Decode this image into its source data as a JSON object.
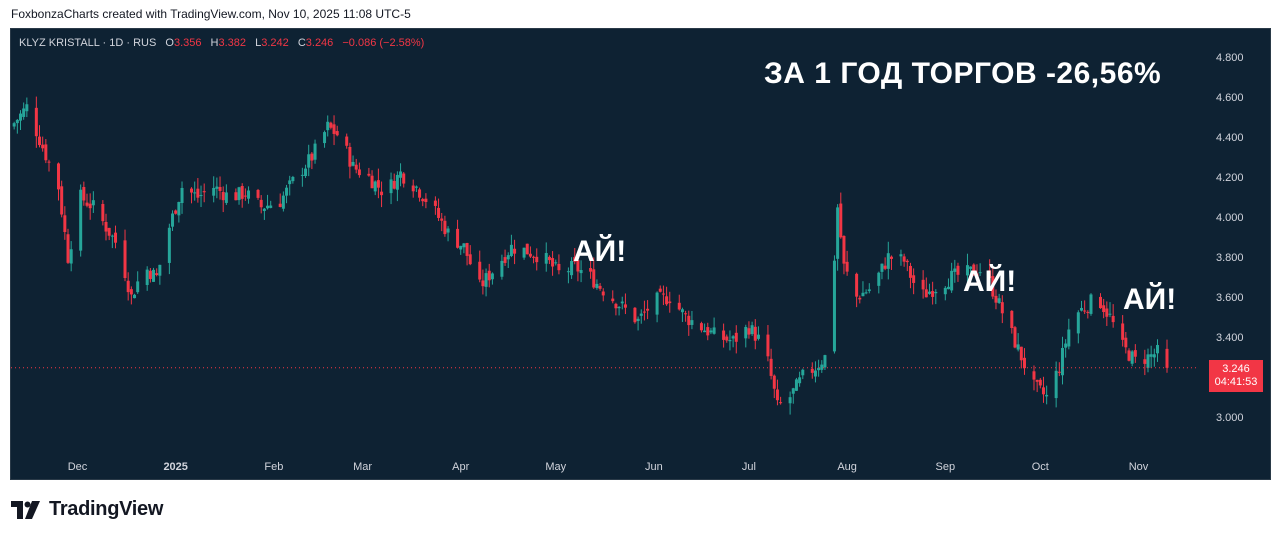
{
  "caption": "FoxbonzaCharts created with TradingView.com, Nov 10, 2025 11:08 UTC-5",
  "legend": {
    "symbol": "KLYZ KRISTALL · 1D · RUS",
    "open_label": "O",
    "open": "3.356",
    "high_label": "H",
    "high": "3.382",
    "low_label": "L",
    "low": "3.242",
    "close_label": "C",
    "close": "3.246",
    "change": "−0.086 (−2.58%)"
  },
  "headline": "ЗА 1 ГОД ТОРГОВ -26,56%",
  "notes": [
    "АЙ!",
    "АЙ!",
    "АЙ!"
  ],
  "price_tag": {
    "price": "3.246",
    "countdown": "04:41:53"
  },
  "footer": {
    "brand": "TradingView"
  },
  "colors": {
    "background": "#0e2233",
    "up": "#26a69a",
    "down": "#f23645",
    "axis_text": "#d1d4dc"
  },
  "chart_data": {
    "type": "candlestick",
    "title": "",
    "ylim": [
      2.85,
      4.9
    ],
    "y_ticks": [
      "4.800",
      "4.600",
      "4.400",
      "4.200",
      "4.000",
      "3.800",
      "3.600",
      "3.400",
      "3.246",
      "3.000"
    ],
    "x_ticks": [
      "Dec",
      "2025",
      "Feb",
      "Mar",
      "Apr",
      "May",
      "Jun",
      "Jul",
      "Aug",
      "Sep",
      "Oct",
      "Nov"
    ],
    "last_price": 3.246,
    "close_path": [
      [
        "2024-11-10",
        4.45
      ],
      [
        "2024-11-15",
        4.55
      ],
      [
        "2024-11-20",
        4.35
      ],
      [
        "2024-11-25",
        4.15
      ],
      [
        "2024-11-28",
        3.8
      ],
      [
        "2024-12-02",
        4.1
      ],
      [
        "2024-12-06",
        4.05
      ],
      [
        "2024-12-10",
        3.95
      ],
      [
        "2024-12-14",
        3.85
      ],
      [
        "2024-12-18",
        3.6
      ],
      [
        "2024-12-22",
        3.75
      ],
      [
        "2024-12-26",
        3.7
      ],
      [
        "2024-12-30",
        3.95
      ],
      [
        "2025-01-03",
        4.15
      ],
      [
        "2025-01-08",
        4.1
      ],
      [
        "2025-01-13",
        4.15
      ],
      [
        "2025-01-18",
        4.1
      ],
      [
        "2025-01-23",
        4.12
      ],
      [
        "2025-01-28",
        4.05
      ],
      [
        "2025-02-03",
        4.08
      ],
      [
        "2025-02-08",
        4.2
      ],
      [
        "2025-02-13",
        4.3
      ],
      [
        "2025-02-18",
        4.45
      ],
      [
        "2025-02-22",
        4.4
      ],
      [
        "2025-02-26",
        4.25
      ],
      [
        "2025-03-03",
        4.2
      ],
      [
        "2025-03-08",
        4.12
      ],
      [
        "2025-03-13",
        4.22
      ],
      [
        "2025-03-18",
        4.15
      ],
      [
        "2025-03-23",
        4.05
      ],
      [
        "2025-03-28",
        3.92
      ],
      [
        "2025-04-02",
        3.85
      ],
      [
        "2025-04-07",
        3.65
      ],
      [
        "2025-04-12",
        3.75
      ],
      [
        "2025-04-17",
        3.85
      ],
      [
        "2025-04-22",
        3.83
      ],
      [
        "2025-04-27",
        3.8
      ],
      [
        "2025-05-02",
        3.72
      ],
      [
        "2025-05-07",
        3.75
      ],
      [
        "2025-05-12",
        3.7
      ],
      [
        "2025-05-17",
        3.62
      ],
      [
        "2025-05-22",
        3.55
      ],
      [
        "2025-05-27",
        3.48
      ],
      [
        "2025-06-01",
        3.58
      ],
      [
        "2025-06-06",
        3.6
      ],
      [
        "2025-06-11",
        3.5
      ],
      [
        "2025-06-16",
        3.45
      ],
      [
        "2025-06-21",
        3.4
      ],
      [
        "2025-06-26",
        3.38
      ],
      [
        "2025-07-01",
        3.45
      ],
      [
        "2025-07-06",
        3.35
      ],
      [
        "2025-07-10",
        3.05
      ],
      [
        "2025-07-14",
        3.1
      ],
      [
        "2025-07-18",
        3.2
      ],
      [
        "2025-07-22",
        3.25
      ],
      [
        "2025-07-25",
        3.3
      ],
      [
        "2025-07-27",
        3.55
      ],
      [
        "2025-07-29",
        4.05
      ],
      [
        "2025-07-31",
        3.75
      ],
      [
        "2025-08-04",
        3.6
      ],
      [
        "2025-08-09",
        3.65
      ],
      [
        "2025-08-14",
        3.8
      ],
      [
        "2025-08-19",
        3.78
      ],
      [
        "2025-08-24",
        3.6
      ],
      [
        "2025-08-29",
        3.65
      ],
      [
        "2025-09-03",
        3.7
      ],
      [
        "2025-09-08",
        3.72
      ],
      [
        "2025-09-13",
        3.74
      ],
      [
        "2025-09-17",
        3.6
      ],
      [
        "2025-09-21",
        3.45
      ],
      [
        "2025-09-25",
        3.3
      ],
      [
        "2025-09-29",
        3.15
      ],
      [
        "2025-10-03",
        3.1
      ],
      [
        "2025-10-07",
        3.25
      ],
      [
        "2025-10-11",
        3.5
      ],
      [
        "2025-10-15",
        3.55
      ],
      [
        "2025-10-19",
        3.6
      ],
      [
        "2025-10-23",
        3.5
      ],
      [
        "2025-10-27",
        3.35
      ],
      [
        "2025-10-31",
        3.28
      ],
      [
        "2025-11-04",
        3.3
      ],
      [
        "2025-11-08",
        3.33
      ],
      [
        "2025-11-10",
        3.246
      ]
    ]
  }
}
